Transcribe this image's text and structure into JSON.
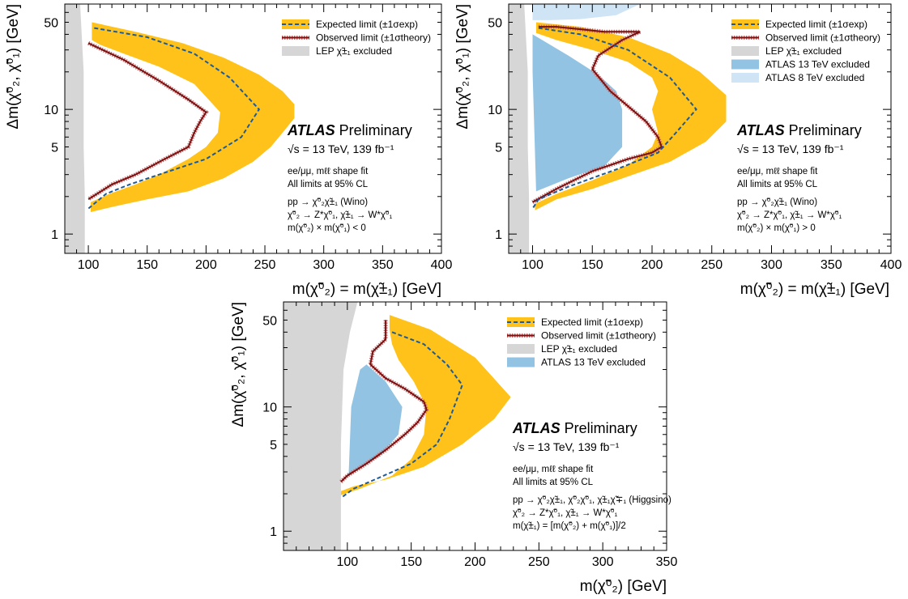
{
  "colors": {
    "band": "#FFC21A",
    "expected": "#1E5A96",
    "observed": "#7A1010",
    "observed_band": "#C56C6C",
    "lep": "#D6D6D6",
    "atlas13": "#93C3E3",
    "atlas8": "#CFE4F4"
  },
  "chart_data": [
    {
      "type": "area",
      "xlabel": "m(χ̃⁰₂) = m(χ̃±₁) [GeV]",
      "ylabel": "Δm(χ̃⁰₂, χ̃⁰₁) [GeV]",
      "xlim": [
        80,
        400
      ],
      "ylim": [
        0.7,
        70
      ],
      "yscale": "log",
      "xticks": [
        "100",
        "150",
        "200",
        "250",
        "300",
        "350",
        "400"
      ],
      "yticks": [
        "1",
        "5",
        "10",
        "50"
      ],
      "legend": [
        "Expected limit (±1σexp)",
        "Observed limit (±1σtheory)",
        "LEP χ̃±₁ excluded"
      ],
      "legend_position": "top-right",
      "atlas_bold": "ATLAS",
      "atlas_label": "Preliminary",
      "energy": "√s = 13 TeV, 139 fb⁻¹",
      "annotations": [
        "ee/μμ, mℓℓ shape fit",
        "All limits at 95% CL",
        "pp → χ̃⁰₂χ̃±₁ (Wino)",
        "χ̃⁰₂ → Z*χ̃⁰₁, χ̃±₁ → W*χ̃⁰₁",
        "m(χ̃⁰₂) × m(χ̃⁰₁) < 0"
      ],
      "series": [
        {
          "name": "Expected limit (±1σexp)",
          "kind": "expected",
          "x": [
            105,
            150,
            190,
            220,
            245,
            230,
            200,
            160,
            135,
            115,
            100
          ],
          "y": [
            45,
            38,
            28,
            18,
            10,
            6,
            4,
            3,
            2.5,
            2.1,
            1.6
          ]
        },
        {
          "name": "Observed limit (±1σtheory)",
          "kind": "observed",
          "x": [
            100,
            130,
            160,
            185,
            200,
            195,
            190,
            185,
            165,
            140,
            120,
            100
          ],
          "y": [
            34,
            25,
            17,
            12,
            9.5,
            8,
            6.5,
            5,
            4,
            3,
            2.5,
            1.9
          ]
        },
        {
          "kind": "band",
          "x": [
            103,
            140,
            180,
            215,
            245,
            265,
            275,
            275,
            265,
            255,
            240,
            215,
            185,
            150,
            120,
            102,
            102,
            118,
            140,
            160,
            185,
            200,
            210,
            212,
            190,
            160,
            130,
            110,
            103
          ],
          "y": [
            50,
            42,
            34,
            26,
            19,
            14,
            11,
            8.5,
            6.5,
            5,
            3.8,
            2.8,
            2.2,
            1.9,
            1.65,
            1.5,
            1.8,
            2.1,
            2.5,
            3,
            4,
            5,
            6.5,
            9.5,
            16,
            22,
            28,
            33,
            36
          ]
        },
        {
          "kind": "lep",
          "x": [
            80,
            93,
            96,
            96,
            97,
            97,
            80
          ],
          "y": [
            70,
            70,
            20,
            5,
            2,
            0.7,
            0.7
          ]
        }
      ]
    },
    {
      "type": "area",
      "xlabel": "m(χ̃⁰₂) = m(χ̃±₁) [GeV]",
      "ylabel": "Δm(χ̃⁰₂, χ̃⁰₁) [GeV]",
      "xlim": [
        80,
        400
      ],
      "ylim": [
        0.7,
        70
      ],
      "yscale": "log",
      "xticks": [
        "100",
        "150",
        "200",
        "250",
        "300",
        "350",
        "400"
      ],
      "yticks": [
        "1",
        "5",
        "10",
        "50"
      ],
      "legend": [
        "Expected limit (±1σexp)",
        "Observed limit (±1σtheory)",
        "LEP χ̃±₁ excluded",
        "ATLAS 13 TeV excluded",
        "ATLAS 8 TeV excluded"
      ],
      "legend_position": "top-right",
      "atlas_bold": "ATLAS",
      "atlas_label": "Preliminary",
      "energy": "√s = 13 TeV, 139 fb⁻¹",
      "annotations": [
        "ee/μμ, mℓℓ shape fit",
        "All limits at 95% CL",
        "pp → χ̃⁰₂χ̃±₁ (Wino)",
        "χ̃⁰₂ → Z*χ̃⁰₁, χ̃±₁ → W*χ̃⁰₁",
        "m(χ̃⁰₂) × m(χ̃⁰₁) > 0"
      ],
      "series": [
        {
          "name": "Expected limit (±1σexp)",
          "kind": "expected",
          "x": [
            105,
            140,
            180,
            215,
            237,
            220,
            205,
            170,
            130,
            105,
            100
          ],
          "y": [
            45,
            40,
            30,
            18,
            10,
            6.5,
            4.5,
            3.3,
            2.4,
            1.9,
            1.6
          ]
        },
        {
          "name": "Observed limit (±1σtheory)",
          "kind": "observed",
          "x": [
            105,
            120,
            140,
            160,
            190,
            175,
            155,
            150,
            165,
            195,
            205,
            208,
            200,
            180,
            150,
            120,
            100
          ],
          "y": [
            46,
            46,
            44,
            42,
            42,
            36,
            27,
            21,
            14,
            8,
            6,
            5,
            4.5,
            4,
            3.2,
            2.3,
            1.8
          ]
        },
        {
          "kind": "band",
          "x": [
            103,
            140,
            180,
            215,
            240,
            262,
            262,
            245,
            215,
            180,
            150,
            120,
            102,
            102,
            120,
            150,
            180,
            200,
            205,
            200,
            205,
            200,
            180,
            150,
            120,
            103
          ],
          "y": [
            50,
            46,
            38,
            28,
            20,
            13,
            8,
            5.5,
            3.8,
            2.9,
            2.3,
            1.9,
            1.55,
            1.75,
            2.1,
            2.7,
            3.6,
            5,
            6.5,
            10,
            14,
            18,
            24,
            30,
            36,
            41
          ]
        },
        {
          "kind": "atlas13",
          "x": [
            100,
            130,
            155,
            170,
            175,
            175,
            160,
            130,
            103,
            100
          ],
          "y": [
            40,
            27,
            19,
            14,
            10,
            5,
            3.5,
            2.8,
            2.2,
            20
          ]
        },
        {
          "kind": "atlas8",
          "x": [
            100,
            100,
            190,
            170,
            140,
            115,
            100
          ],
          "y": [
            52,
            70,
            70,
            57,
            53,
            52,
            52
          ]
        },
        {
          "kind": "lep",
          "x": [
            80,
            93,
            96,
            96,
            97,
            97,
            80
          ],
          "y": [
            70,
            70,
            20,
            5,
            2,
            0.7,
            0.7
          ]
        }
      ]
    },
    {
      "type": "area",
      "xlabel": "m(χ̃⁰₂) [GeV]",
      "ylabel": "Δm(χ̃⁰₂, χ̃⁰₁) [GeV]",
      "xlim": [
        50,
        350
      ],
      "ylim": [
        0.7,
        70
      ],
      "yscale": "log",
      "xticks": [
        "100",
        "150",
        "200",
        "250",
        "300",
        "350"
      ],
      "yticks": [
        "1",
        "5",
        "10",
        "50"
      ],
      "legend": [
        "Expected limit (±1σexp)",
        "Observed limit (±1σtheory)",
        "LEP χ̃±₁ excluded",
        "ATLAS 13 TeV excluded"
      ],
      "legend_position": "top-right",
      "atlas_bold": "ATLAS",
      "atlas_label": "Preliminary",
      "energy": "√s = 13 TeV, 139 fb⁻¹",
      "annotations": [
        "ee/μμ, mℓℓ shape fit",
        "All limits at 95% CL",
        "pp → χ̃⁰₂χ̃±₁, χ̃⁰₂χ̃⁰₁, χ̃±₁χ̃∓₁ (Higgsino)",
        "χ̃⁰₂ → Z*χ̃⁰₁, χ̃±₁ → W*χ̃⁰₁",
        "m(χ̃±₁) = [m(χ̃⁰₂) + m(χ̃⁰₁)]/2"
      ],
      "series": [
        {
          "name": "Expected limit (±1σexp)",
          "kind": "expected",
          "x": [
            135,
            160,
            178,
            190,
            180,
            170,
            150,
            125,
            105,
            95
          ],
          "y": [
            40,
            32,
            22,
            15,
            8,
            5,
            3.5,
            2.7,
            2.2,
            1.85
          ]
        },
        {
          "name": "Observed limit (±1σtheory)",
          "kind": "observed",
          "x": [
            130,
            130,
            120,
            118,
            130,
            145,
            160,
            162,
            155,
            145,
            130,
            115,
            100,
            95
          ],
          "y": [
            50,
            35,
            28,
            22,
            17,
            14,
            11,
            9.5,
            7.5,
            6,
            4.5,
            3.5,
            2.8,
            2.5
          ]
        },
        {
          "kind": "band",
          "x": [
            133,
            165,
            200,
            228,
            215,
            190,
            160,
            130,
            105,
            95,
            95,
            110,
            135,
            150,
            160,
            162,
            152,
            140,
            135,
            133
          ],
          "y": [
            55,
            42,
            25,
            12,
            8,
            5,
            3.3,
            2.6,
            2.3,
            2.1,
            1.95,
            2.2,
            2.8,
            3.8,
            6,
            10,
            16,
            24,
            32,
            42
          ]
        },
        {
          "kind": "atlas13",
          "x": [
            110,
            115,
            130,
            143,
            140,
            125,
            110,
            101,
            103
          ],
          "y": [
            20,
            22,
            16,
            10,
            6,
            4,
            3.3,
            2.8,
            10
          ]
        },
        {
          "kind": "lep",
          "x": [
            50,
            108,
            102,
            97,
            95,
            95,
            50
          ],
          "y": [
            70,
            70,
            40,
            20,
            5,
            0.7,
            0.7
          ]
        }
      ]
    }
  ]
}
